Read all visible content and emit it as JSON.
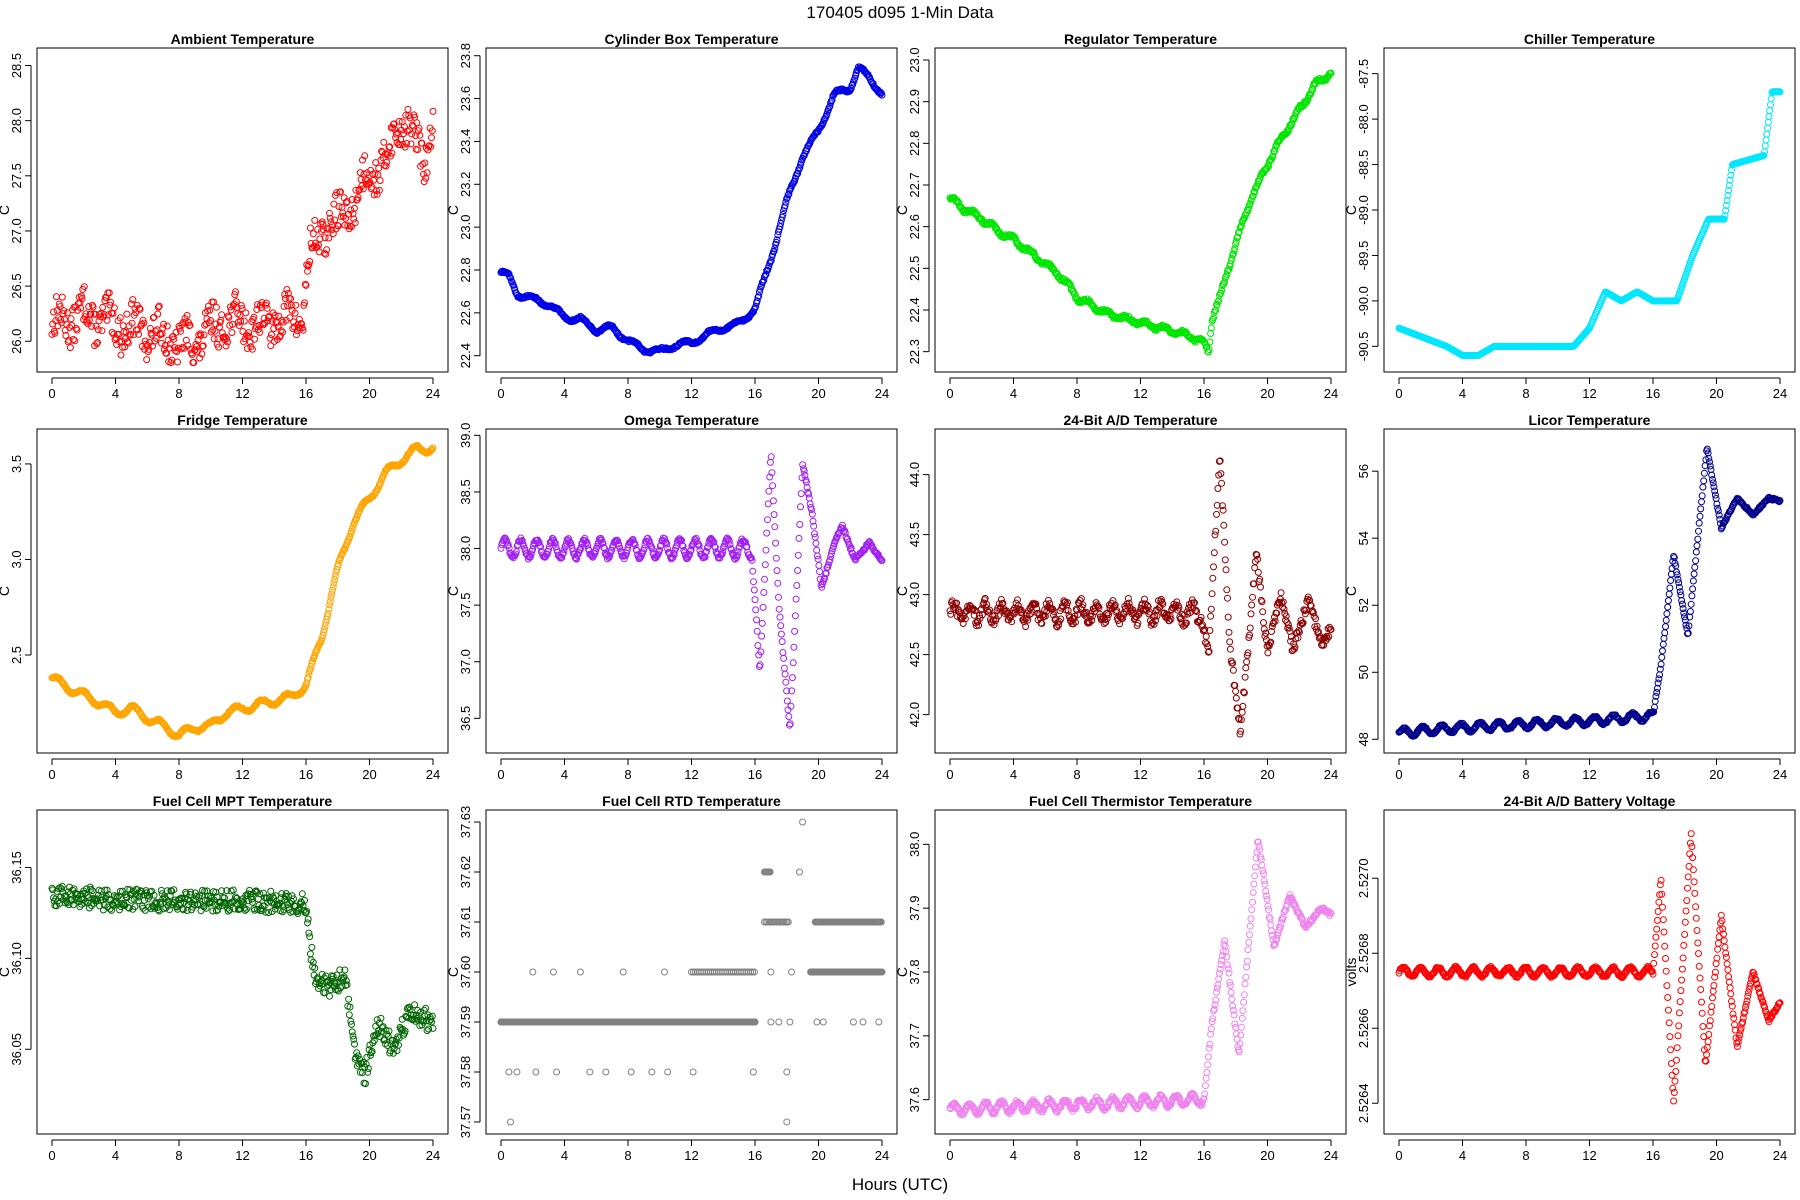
{
  "figure": {
    "title": "170405    d095    1-Min Data",
    "xlabel": "Hours (UTC)"
  },
  "chart_data": [
    {
      "type": "scatter",
      "title": "Ambient Temperature",
      "ylabel": "C",
      "xlim": [
        0,
        24
      ],
      "xticks": [
        0,
        4,
        8,
        12,
        16,
        20,
        24
      ],
      "ylim": [
        25.83,
        28.55
      ],
      "yticks": [
        "26.0",
        "26.5",
        "27.0",
        "27.5",
        "28.0",
        "28.5"
      ],
      "color": "#ff0000",
      "profile": [
        [
          0,
          26.15
        ],
        [
          2,
          26.25
        ],
        [
          4,
          26.15
        ],
        [
          6,
          26.1
        ],
        [
          8,
          25.98
        ],
        [
          9,
          26.0
        ],
        [
          11,
          26.2
        ],
        [
          13,
          26.15
        ],
        [
          15.8,
          26.25
        ],
        [
          16.2,
          26.75
        ],
        [
          17,
          27.0
        ],
        [
          18,
          27.1
        ],
        [
          19,
          27.25
        ],
        [
          20,
          27.55
        ],
        [
          21,
          27.6
        ],
        [
          22,
          28.05
        ],
        [
          22.5,
          27.9
        ],
        [
          23.5,
          27.65
        ],
        [
          24,
          28.0
        ]
      ],
      "noise": 0.17,
      "wobble": {
        "amp": 0.1,
        "period": 1.6
      }
    },
    {
      "type": "scatter",
      "title": "Cylinder Box Temperature",
      "ylabel": "C",
      "xlim": [
        0,
        24
      ],
      "xticks": [
        0,
        4,
        8,
        12,
        16,
        20,
        24
      ],
      "ylim": [
        22.38,
        23.78
      ],
      "yticks": [
        "22.4",
        "22.6",
        "22.8",
        "23.0",
        "23.2",
        "23.4",
        "23.6",
        "23.8"
      ],
      "color": "#0000e6",
      "profile": [
        [
          0,
          22.79
        ],
        [
          0.5,
          22.77
        ],
        [
          1,
          22.69
        ],
        [
          3,
          22.64
        ],
        [
          4,
          22.58
        ],
        [
          5,
          22.57
        ],
        [
          6,
          22.52
        ],
        [
          7,
          22.53
        ],
        [
          8,
          22.47
        ],
        [
          9,
          22.43
        ],
        [
          10,
          22.42
        ],
        [
          11,
          22.45
        ],
        [
          12,
          22.46
        ],
        [
          13,
          22.5
        ],
        [
          14,
          22.53
        ],
        [
          15,
          22.55
        ],
        [
          16,
          22.62
        ],
        [
          17,
          22.85
        ],
        [
          18,
          23.12
        ],
        [
          19,
          23.33
        ],
        [
          20,
          23.45
        ],
        [
          21,
          23.62
        ],
        [
          22,
          23.65
        ],
        [
          22.5,
          23.74
        ],
        [
          23.2,
          23.7
        ],
        [
          24,
          23.62
        ]
      ],
      "noise": 0.005,
      "wobble": {
        "amp": 0.012,
        "period": 1.6
      }
    },
    {
      "type": "scatter",
      "title": "Regulator Temperature",
      "ylabel": "C",
      "xlim": [
        0,
        24
      ],
      "xticks": [
        0,
        4,
        8,
        12,
        16,
        20,
        24
      ],
      "ylim": [
        22.28,
        23.0
      ],
      "yticks": [
        "22.3",
        "22.4",
        "22.5",
        "22.6",
        "22.7",
        "22.8",
        "22.9",
        "23.0"
      ],
      "color": "#00e600",
      "profile": [
        [
          0,
          22.67
        ],
        [
          1,
          22.64
        ],
        [
          2,
          22.62
        ],
        [
          3,
          22.59
        ],
        [
          4,
          22.57
        ],
        [
          5,
          22.54
        ],
        [
          6,
          22.51
        ],
        [
          7,
          22.48
        ],
        [
          8,
          22.43
        ],
        [
          9,
          22.41
        ],
        [
          10,
          22.39
        ],
        [
          11,
          22.38
        ],
        [
          12,
          22.37
        ],
        [
          13,
          22.36
        ],
        [
          14,
          22.35
        ],
        [
          15,
          22.34
        ],
        [
          16,
          22.32
        ],
        [
          16.3,
          22.3
        ],
        [
          16.5,
          22.38
        ],
        [
          17,
          22.43
        ],
        [
          18,
          22.56
        ],
        [
          19,
          22.67
        ],
        [
          20,
          22.75
        ],
        [
          21,
          22.82
        ],
        [
          22,
          22.88
        ],
        [
          23,
          22.94
        ],
        [
          24,
          22.97
        ]
      ],
      "noise": 0.004,
      "wobble": {
        "amp": 0.006,
        "period": 1.2
      }
    },
    {
      "type": "scatter",
      "title": "Chiller Temperature",
      "ylabel": "C",
      "xlim": [
        0,
        24
      ],
      "xticks": [
        0,
        4,
        8,
        12,
        16,
        20,
        24
      ],
      "ylim": [
        -90.65,
        -87.35
      ],
      "yticks": [
        "-90.5",
        "-90.0",
        "-89.5",
        "-89.0",
        "-88.5",
        "-88.0",
        "-87.5"
      ],
      "color": "#00e6ff",
      "profile": [
        [
          0,
          -90.3
        ],
        [
          1.5,
          -90.4
        ],
        [
          3,
          -90.5
        ],
        [
          4,
          -90.6
        ],
        [
          5,
          -90.6
        ],
        [
          6,
          -90.5
        ],
        [
          11,
          -90.5
        ],
        [
          12,
          -90.3
        ],
        [
          13,
          -89.9
        ],
        [
          14,
          -90.0
        ],
        [
          15,
          -89.9
        ],
        [
          16,
          -90.0
        ],
        [
          17.5,
          -90.0
        ],
        [
          18.5,
          -89.5
        ],
        [
          19.5,
          -89.1
        ],
        [
          20.5,
          -89.1
        ],
        [
          21,
          -88.5
        ],
        [
          23,
          -88.4
        ],
        [
          23.5,
          -87.7
        ],
        [
          24,
          -87.7
        ]
      ],
      "noise": 0.0,
      "wobble": {
        "amp": 0.0,
        "period": 1.0
      }
    },
    {
      "type": "scatter",
      "title": "Fridge Temperature",
      "ylabel": "C",
      "xlim": [
        0,
        24
      ],
      "xticks": [
        0,
        4,
        8,
        12,
        16,
        20,
        24
      ],
      "ylim": [
        2.05,
        3.62
      ],
      "yticks": [
        "2.5",
        "3.0",
        "3.5"
      ],
      "color": "#ffa500",
      "profile": [
        [
          0,
          2.38
        ],
        [
          1,
          2.33
        ],
        [
          2,
          2.29
        ],
        [
          3,
          2.25
        ],
        [
          4,
          2.2
        ],
        [
          5,
          2.22
        ],
        [
          6,
          2.17
        ],
        [
          7,
          2.13
        ],
        [
          8,
          2.08
        ],
        [
          9,
          2.12
        ],
        [
          10,
          2.13
        ],
        [
          11,
          2.2
        ],
        [
          12,
          2.22
        ],
        [
          13,
          2.24
        ],
        [
          14,
          2.26
        ],
        [
          15,
          2.28
        ],
        [
          16,
          2.34
        ],
        [
          17,
          2.6
        ],
        [
          18,
          2.95
        ],
        [
          19,
          3.2
        ],
        [
          20,
          3.32
        ],
        [
          21,
          3.45
        ],
        [
          22,
          3.52
        ],
        [
          23,
          3.58
        ],
        [
          24,
          3.58
        ]
      ],
      "noise": 0.004,
      "wobble": {
        "amp": 0.02,
        "period": 1.6
      }
    },
    {
      "type": "scatter",
      "title": "Omega Temperature",
      "ylabel": "C",
      "xlim": [
        0,
        24
      ],
      "xticks": [
        0,
        4,
        8,
        12,
        16,
        20,
        24
      ],
      "ylim": [
        36.3,
        38.95
      ],
      "yticks": [
        "36.5",
        "37.0",
        "37.5",
        "38.0",
        "38.5",
        "39.0"
      ],
      "color": "#a020f0",
      "profile": [
        [
          0,
          38.0
        ],
        [
          15.8,
          38.0
        ],
        [
          16.3,
          36.9
        ],
        [
          17,
          38.85
        ],
        [
          17.5,
          37.5
        ],
        [
          18.2,
          36.4
        ],
        [
          19,
          38.75
        ],
        [
          19.6,
          38.3
        ],
        [
          20.2,
          37.65
        ],
        [
          21,
          38.05
        ],
        [
          21.5,
          38.2
        ],
        [
          22.3,
          37.9
        ],
        [
          23.2,
          38.05
        ],
        [
          24,
          37.9
        ]
      ],
      "noise": 0.015,
      "wobble": {
        "amp": 0.08,
        "period": 1.0,
        "until": 16
      }
    },
    {
      "type": "scatter",
      "title": "24-Bit A/D Temperature",
      "ylabel": "C",
      "xlim": [
        0,
        24
      ],
      "xticks": [
        0,
        4,
        8,
        12,
        16,
        20,
        24
      ],
      "ylim": [
        41.78,
        44.28
      ],
      "yticks": [
        "42.0",
        "42.5",
        "43.0",
        "43.5",
        "44.0"
      ],
      "color": "#8b0000",
      "profile": [
        [
          0,
          42.85
        ],
        [
          15.8,
          42.85
        ],
        [
          16.3,
          42.5
        ],
        [
          17,
          44.2
        ],
        [
          17.6,
          42.6
        ],
        [
          18.3,
          41.85
        ],
        [
          19.3,
          43.35
        ],
        [
          20,
          42.5
        ],
        [
          20.8,
          43.0
        ],
        [
          21.6,
          42.55
        ],
        [
          22.6,
          42.95
        ],
        [
          23.4,
          42.6
        ],
        [
          24,
          42.7
        ]
      ],
      "noise": 0.05,
      "wobble": {
        "amp": 0.07,
        "period": 1.0,
        "until": 16
      }
    },
    {
      "type": "scatter",
      "title": "Licor Temperature",
      "ylabel": "C",
      "xlim": [
        0,
        24
      ],
      "xticks": [
        0,
        4,
        8,
        12,
        16,
        20,
        24
      ],
      "ylim": [
        47.95,
        56.9
      ],
      "yticks": [
        "48",
        "50",
        "52",
        "54",
        "56"
      ],
      "color": "#00008b",
      "profile": [
        [
          0,
          48.2
        ],
        [
          4,
          48.35
        ],
        [
          8,
          48.45
        ],
        [
          12,
          48.55
        ],
        [
          16,
          48.7
        ],
        [
          16.5,
          50.2
        ],
        [
          17.3,
          53.5
        ],
        [
          18.2,
          51.1
        ],
        [
          19.4,
          56.7
        ],
        [
          20.3,
          54.3
        ],
        [
          21.3,
          55.2
        ],
        [
          22.3,
          54.7
        ],
        [
          23.3,
          55.2
        ],
        [
          24,
          55.1
        ]
      ],
      "noise": 0.03,
      "wobble": {
        "amp": 0.12,
        "period": 1.2,
        "until": 16
      }
    },
    {
      "type": "scatter",
      "title": "Fuel Cell MPT Temperature",
      "ylabel": "C",
      "xlim": [
        0,
        24
      ],
      "xticks": [
        0,
        4,
        8,
        12,
        16,
        20,
        24
      ],
      "ylim": [
        36.01,
        36.175
      ],
      "yticks": [
        "36.05",
        "36.10",
        "36.15"
      ],
      "color": "#006400",
      "profile": [
        [
          0,
          36.135
        ],
        [
          4,
          36.132
        ],
        [
          8,
          36.132
        ],
        [
          12,
          36.132
        ],
        [
          16,
          36.13
        ],
        [
          16.5,
          36.09
        ],
        [
          17.5,
          36.085
        ],
        [
          18.5,
          36.09
        ],
        [
          19,
          36.05
        ],
        [
          19.7,
          36.035
        ],
        [
          20.5,
          36.065
        ],
        [
          21.5,
          36.05
        ],
        [
          22.5,
          36.07
        ],
        [
          24,
          36.065
        ]
      ],
      "noise": 0.006,
      "wobble": {
        "amp": 0.0,
        "period": 1.0
      }
    },
    {
      "type": "scatter",
      "title": "Fuel Cell RTD Temperature",
      "ylabel": "C",
      "xlim": [
        0,
        24
      ],
      "xticks": [
        0,
        4,
        8,
        12,
        16,
        20,
        24
      ],
      "ylim": [
        37.57,
        37.63
      ],
      "yticks": [
        "37.57",
        "37.58",
        "37.59",
        "37.60",
        "37.61",
        "37.62",
        "37.63"
      ],
      "color": "#808080",
      "levels": [
        {
          "y": 37.59,
          "from": 0,
          "to": 16,
          "every": 0.02
        },
        {
          "y": 37.6,
          "from": 12,
          "to": 16,
          "every": 0.12
        },
        {
          "y": 37.61,
          "from": 16.6,
          "to": 18.2,
          "every": 0.1
        },
        {
          "y": 37.62,
          "from": 16.6,
          "to": 17.0,
          "every": 0.05
        },
        {
          "y": 37.6,
          "from": 19.5,
          "to": 24,
          "every": 0.025
        },
        {
          "y": 37.61,
          "from": 19.8,
          "to": 24,
          "every": 0.05
        }
      ],
      "extra_points": [
        [
          0.6,
          37.57
        ],
        [
          2.0,
          37.6
        ],
        [
          3.3,
          37.6
        ],
        [
          5.0,
          37.6
        ],
        [
          7.7,
          37.6
        ],
        [
          10.3,
          37.6
        ],
        [
          0.5,
          37.58
        ],
        [
          1.0,
          37.58
        ],
        [
          2.2,
          37.58
        ],
        [
          3.5,
          37.58
        ],
        [
          5.6,
          37.58
        ],
        [
          6.6,
          37.58
        ],
        [
          8.2,
          37.58
        ],
        [
          9.5,
          37.58
        ],
        [
          10.5,
          37.58
        ],
        [
          12.1,
          37.58
        ],
        [
          15.9,
          37.58
        ],
        [
          18.0,
          37.58
        ],
        [
          18.0,
          37.57
        ],
        [
          19.0,
          37.63
        ],
        [
          17.0,
          37.6
        ],
        [
          18.3,
          37.6
        ],
        [
          18.0,
          37.61
        ],
        [
          18.8,
          37.62
        ],
        [
          17.0,
          37.59
        ],
        [
          17.5,
          37.59
        ],
        [
          18.2,
          37.59
        ],
        [
          19.9,
          37.59
        ],
        [
          20.3,
          37.59
        ],
        [
          22.2,
          37.59
        ],
        [
          23.8,
          37.59
        ],
        [
          22.8,
          37.59
        ]
      ],
      "noise": 0.0,
      "wobble": {
        "amp": 0.0,
        "period": 1.0
      }
    },
    {
      "type": "scatter",
      "title": "Fuel Cell Thermistor Temperature",
      "ylabel": "C",
      "xlim": [
        0,
        24
      ],
      "xticks": [
        0,
        4,
        8,
        12,
        16,
        20,
        24
      ],
      "ylim": [
        37.565,
        38.035
      ],
      "yticks": [
        "37.6",
        "37.7",
        "37.8",
        "37.9",
        "38.0"
      ],
      "color": "#ee82ee",
      "profile": [
        [
          0,
          37.585
        ],
        [
          16,
          37.6
        ],
        [
          16.5,
          37.72
        ],
        [
          17.3,
          37.85
        ],
        [
          18.2,
          37.67
        ],
        [
          19.4,
          38.01
        ],
        [
          20.4,
          37.84
        ],
        [
          21.4,
          37.92
        ],
        [
          22.4,
          37.87
        ],
        [
          23.4,
          37.9
        ],
        [
          24,
          37.89
        ]
      ],
      "noise": 0.003,
      "wobble": {
        "amp": 0.008,
        "period": 1.0,
        "until": 16
      }
    },
    {
      "type": "scatter",
      "title": "24-Bit A/D Battery Voltage",
      "ylabel": "volts",
      "xlim": [
        0,
        24
      ],
      "xticks": [
        0,
        4,
        8,
        12,
        16,
        20,
        24
      ],
      "ylim": [
        2.52635,
        2.52715
      ],
      "yticks": [
        "2.5264",
        "2.5266",
        "2.5268",
        "2.5270"
      ],
      "color": "#ff0000",
      "profile": [
        [
          0,
          2.52675
        ],
        [
          16,
          2.52675
        ],
        [
          16.5,
          2.527
        ],
        [
          17.3,
          2.5264
        ],
        [
          18.4,
          2.52712
        ],
        [
          19.3,
          2.5265
        ],
        [
          20.3,
          2.5269
        ],
        [
          21.3,
          2.52655
        ],
        [
          22.3,
          2.52675
        ],
        [
          23.3,
          2.52662
        ],
        [
          24,
          2.52667
        ]
      ],
      "noise": 3e-06,
      "wobble": {
        "amp": 1.2e-05,
        "period": 1.1,
        "until": 16
      }
    }
  ]
}
